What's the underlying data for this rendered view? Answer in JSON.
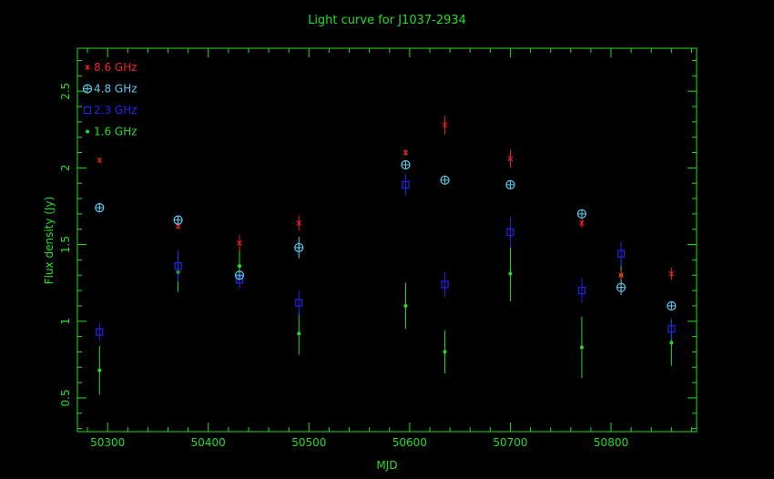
{
  "chart_data": {
    "type": "scatter",
    "title": "Light curve for J1037-2934",
    "xlabel": "MJD",
    "ylabel": "Flux density (Jy)",
    "xlim": [
      50270,
      50885
    ],
    "ylim": [
      0.28,
      2.78
    ],
    "xticks": [
      50300,
      50400,
      50500,
      50600,
      50700,
      50800
    ],
    "yticks": [
      0.5,
      1,
      1.5,
      2,
      2.5
    ],
    "xtick_labels": [
      "50300",
      "50400",
      "50500",
      "50600",
      "50700",
      "50800"
    ],
    "ytick_labels": [
      "0.5",
      "1",
      "1.5",
      "2",
      "2.5"
    ],
    "axis_color": "#22dd22",
    "background": "#000000",
    "legend_position": "top-left",
    "series": [
      {
        "name": "8.6 GHz",
        "color": "#ee2222",
        "marker": "cross",
        "points": [
          {
            "x": 50292,
            "y": 2.05,
            "err": 0.0
          },
          {
            "x": 50370,
            "y": 1.62,
            "err": 0.02
          },
          {
            "x": 50431,
            "y": 1.51,
            "err": 0.05
          },
          {
            "x": 50490,
            "y": 1.64,
            "err": 0.05
          },
          {
            "x": 50596,
            "y": 2.1,
            "err": 0.02
          },
          {
            "x": 50635,
            "y": 2.28,
            "err": 0.06
          },
          {
            "x": 50700,
            "y": 2.06,
            "err": 0.06
          },
          {
            "x": 50771,
            "y": 1.64,
            "err": 0.03
          },
          {
            "x": 50810,
            "y": 1.3,
            "err": 0.03
          },
          {
            "x": 50860,
            "y": 1.31,
            "err": 0.04
          }
        ]
      },
      {
        "name": "4.8 GHz",
        "color": "#55ccee",
        "marker": "circle-plus",
        "points": [
          {
            "x": 50292,
            "y": 1.74,
            "err": 0.01
          },
          {
            "x": 50370,
            "y": 1.66,
            "err": 0.02
          },
          {
            "x": 50431,
            "y": 1.3,
            "err": 0.03
          },
          {
            "x": 50490,
            "y": 1.48,
            "err": 0.07
          },
          {
            "x": 50596,
            "y": 2.02,
            "err": 0.01
          },
          {
            "x": 50635,
            "y": 1.92,
            "err": 0.01
          },
          {
            "x": 50700,
            "y": 1.89,
            "err": 0.02
          },
          {
            "x": 50771,
            "y": 1.7,
            "err": 0.01
          },
          {
            "x": 50810,
            "y": 1.22,
            "err": 0.05
          },
          {
            "x": 50860,
            "y": 1.1,
            "err": 0.01
          }
        ]
      },
      {
        "name": "2.3 GHz",
        "color": "#2222ee",
        "marker": "square",
        "points": [
          {
            "x": 50292,
            "y": 0.93,
            "err": 0.06
          },
          {
            "x": 50370,
            "y": 1.36,
            "err": 0.1
          },
          {
            "x": 50431,
            "y": 1.27,
            "err": 0.06
          },
          {
            "x": 50490,
            "y": 1.12,
            "err": 0.08
          },
          {
            "x": 50596,
            "y": 1.89,
            "err": 0.07
          },
          {
            "x": 50635,
            "y": 1.24,
            "err": 0.08
          },
          {
            "x": 50700,
            "y": 1.58,
            "err": 0.1
          },
          {
            "x": 50771,
            "y": 1.2,
            "err": 0.08
          },
          {
            "x": 50810,
            "y": 1.44,
            "err": 0.08
          },
          {
            "x": 50860,
            "y": 0.95,
            "err": 0.07
          }
        ]
      },
      {
        "name": "1.6 GHz",
        "color": "#22dd22",
        "marker": "dot",
        "points": [
          {
            "x": 50292,
            "y": 0.68,
            "err": 0.16
          },
          {
            "x": 50370,
            "y": 1.32,
            "err": 0.13
          },
          {
            "x": 50431,
            "y": 1.36,
            "err": 0.12
          },
          {
            "x": 50490,
            "y": 0.92,
            "err": 0.14
          },
          {
            "x": 50596,
            "y": 1.1,
            "err": 0.15
          },
          {
            "x": 50635,
            "y": 0.8,
            "err": 0.14
          },
          {
            "x": 50700,
            "y": 1.31,
            "err": 0.18
          },
          {
            "x": 50771,
            "y": 0.83,
            "err": 0.2
          },
          {
            "x": 50810,
            "y": 1.3,
            "err": 0.1
          },
          {
            "x": 50860,
            "y": 0.86,
            "err": 0.15
          }
        ]
      }
    ]
  }
}
